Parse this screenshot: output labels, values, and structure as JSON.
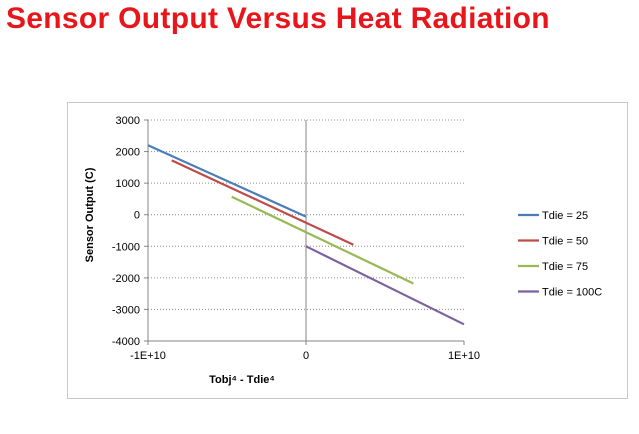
{
  "slide": {
    "title": "Sensor Output Versus Heat Radiation",
    "title_color": "#e8161b"
  },
  "chart_data": {
    "type": "line",
    "title": "",
    "xlabel": "Tobj⁴ - Tdie⁴",
    "ylabel": "Sensor Output (C)",
    "xlim": [
      -10000000000,
      10000000000
    ],
    "ylim": [
      -4000,
      3000
    ],
    "x_ticks": [
      {
        "value": -10000000000,
        "label": "-1E+10"
      },
      {
        "value": 0,
        "label": "0"
      },
      {
        "value": 10000000000,
        "label": "1E+10"
      }
    ],
    "y_ticks": [
      {
        "value": 3000,
        "label": "3000"
      },
      {
        "value": 2000,
        "label": "2000"
      },
      {
        "value": 1000,
        "label": "1000"
      },
      {
        "value": 0,
        "label": "0"
      },
      {
        "value": -1000,
        "label": "-1000"
      },
      {
        "value": -2000,
        "label": "-2000"
      },
      {
        "value": -3000,
        "label": "-3000"
      },
      {
        "value": -4000,
        "label": "-4000"
      }
    ],
    "grid": "horizontal dotted",
    "legend_position": "right",
    "series": [
      {
        "name": "Tdie = 25",
        "color": "#4a7ebb",
        "points": [
          [
            -10000000000,
            2200
          ],
          [
            0,
            -60
          ]
        ]
      },
      {
        "name": "Tdie = 50",
        "color": "#be4b48",
        "points": [
          [
            -8500000000,
            1720
          ],
          [
            3000000000,
            -950
          ]
        ]
      },
      {
        "name": "Tdie = 75",
        "color": "#98b954",
        "points": [
          [
            -4700000000,
            570
          ],
          [
            6800000000,
            -2180
          ]
        ]
      },
      {
        "name": "Tdie = 100C",
        "color": "#7d60a0",
        "points": [
          [
            0,
            -1000
          ],
          [
            10000000000,
            -3470
          ]
        ]
      }
    ]
  }
}
